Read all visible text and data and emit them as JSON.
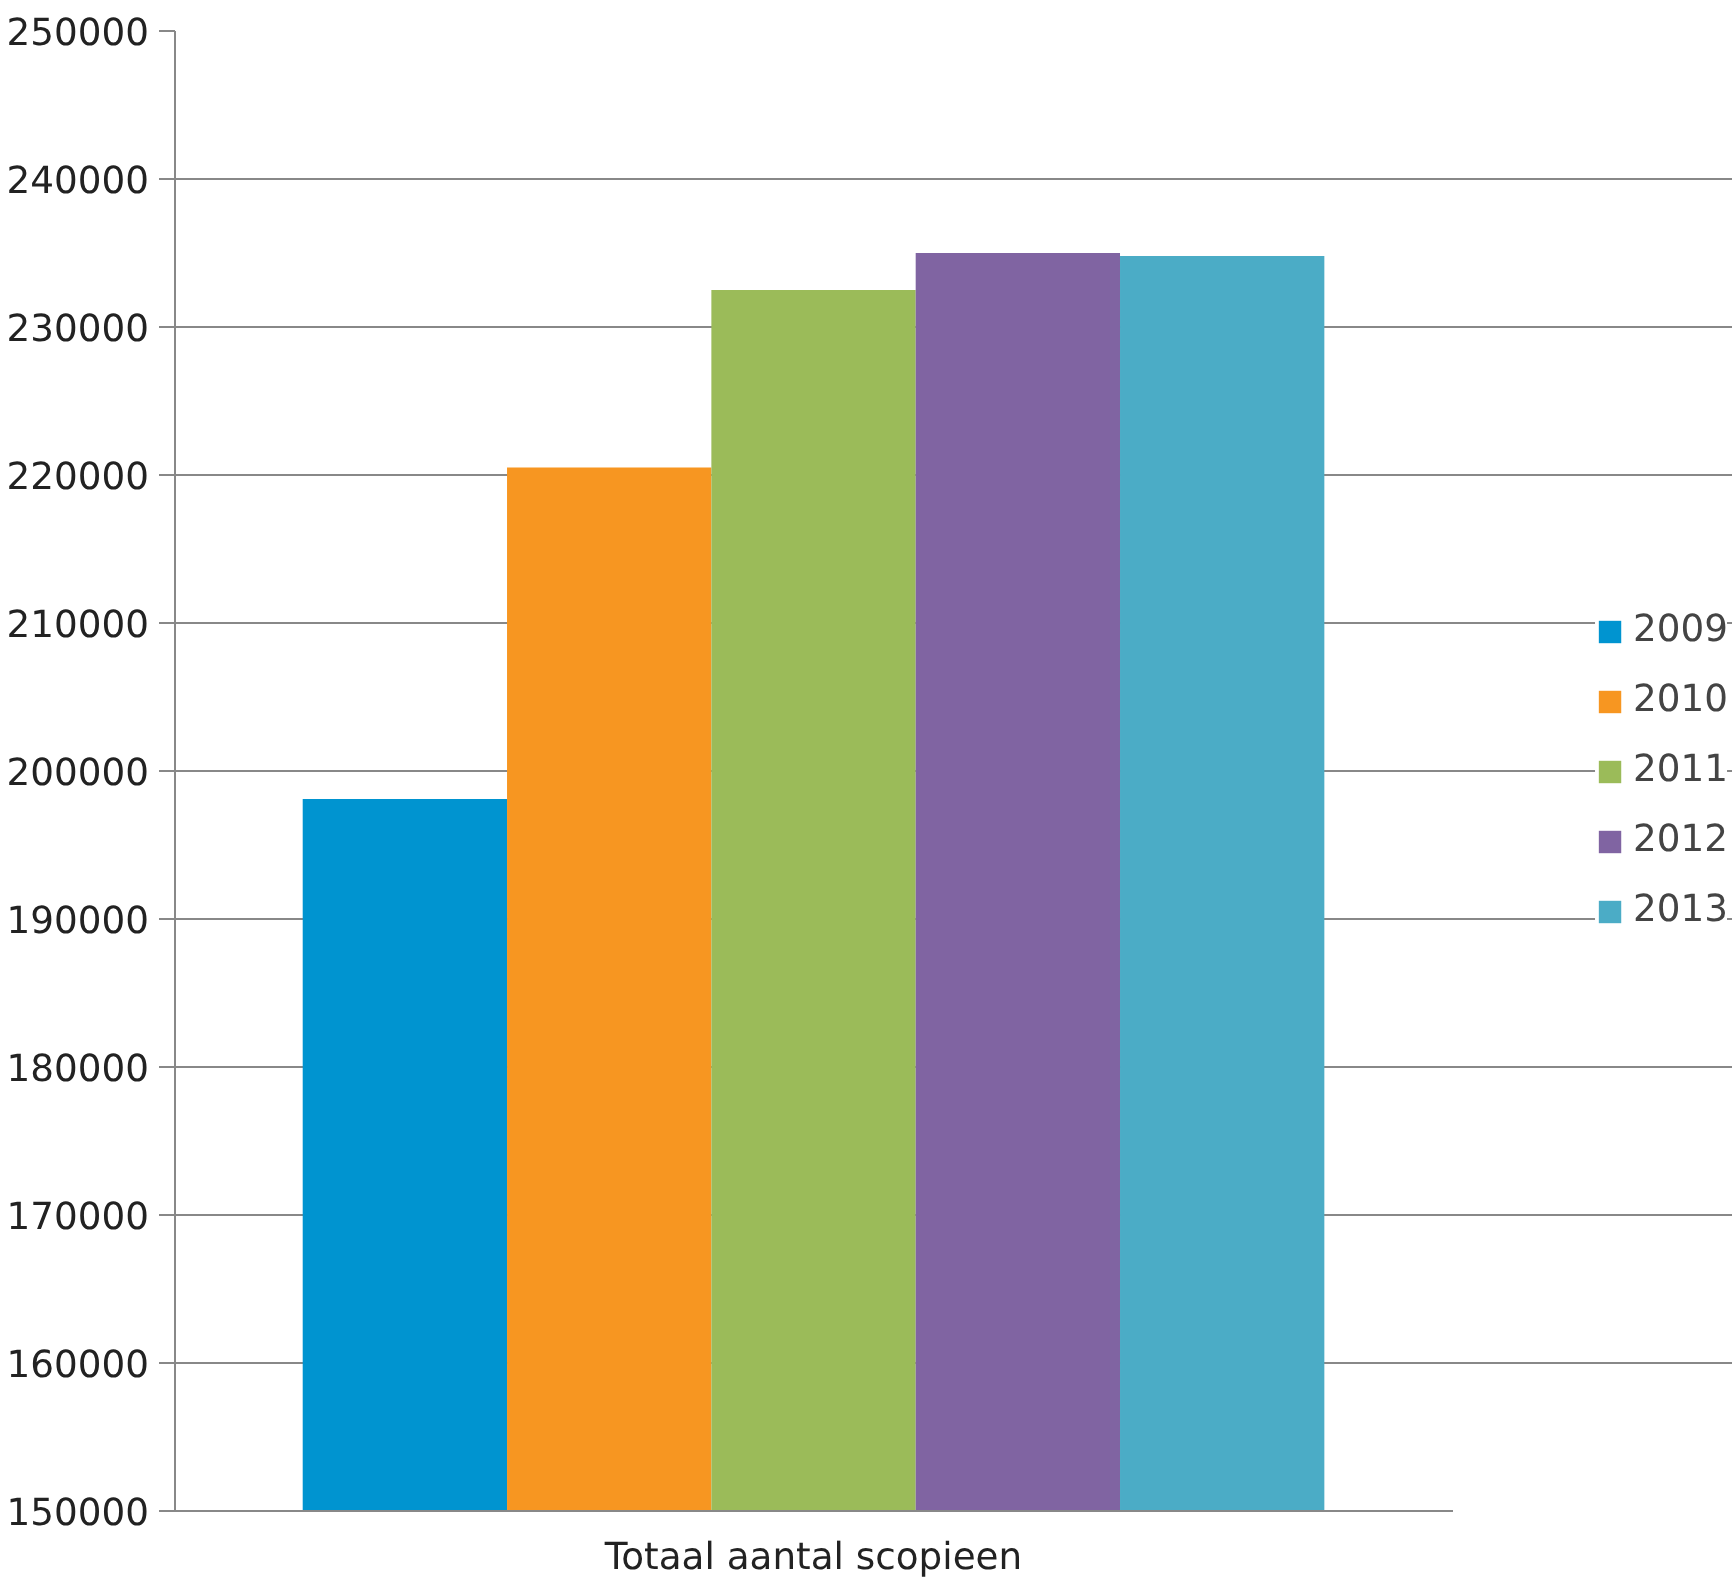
{
  "chart_data": {
    "type": "bar",
    "categories": [
      "Totaal aantal scopieen"
    ],
    "series": [
      {
        "name": "2009",
        "color": "#0094d0",
        "values": [
          198100
        ]
      },
      {
        "name": "2010",
        "color": "#f79621",
        "values": [
          220500
        ]
      },
      {
        "name": "2011",
        "color": "#9bbb59",
        "values": [
          232500
        ]
      },
      {
        "name": "2012",
        "color": "#8064a2",
        "values": [
          235000
        ]
      },
      {
        "name": "2013",
        "color": "#4bacc6",
        "values": [
          234800
        ]
      }
    ],
    "ylim": [
      150000,
      250000
    ],
    "yticks": [
      150000,
      160000,
      170000,
      180000,
      190000,
      200000,
      210000,
      220000,
      230000,
      240000,
      250000
    ],
    "grid": "y",
    "legend": "right"
  }
}
